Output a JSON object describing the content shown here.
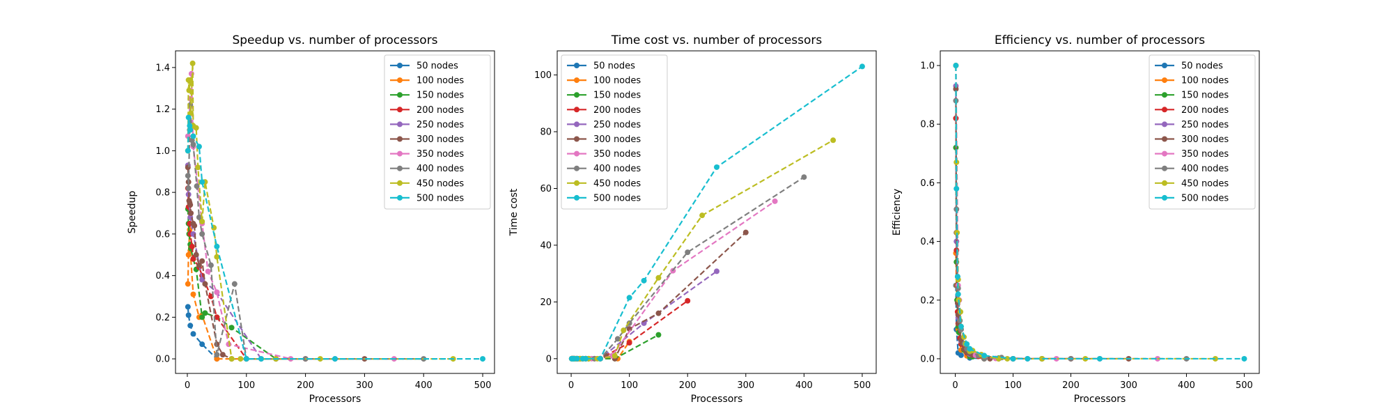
{
  "chart_data": [
    {
      "type": "line",
      "title": "Speedup vs. number of processors",
      "xlabel": "Processors",
      "ylabel": "Speedup",
      "xlim": [
        -20,
        520
      ],
      "ylim": [
        -0.07,
        1.48
      ],
      "xticks": [
        0,
        100,
        200,
        300,
        400,
        500
      ],
      "xtick_labels": [
        "0",
        "100",
        "200",
        "300",
        "400",
        "500"
      ],
      "yticks": [
        0.0,
        0.2,
        0.4,
        0.6,
        0.8,
        1.0,
        1.2,
        1.4
      ],
      "ytick_labels": [
        "0.0",
        "0.2",
        "0.4",
        "0.6",
        "0.8",
        "1.0",
        "1.2",
        "1.4"
      ],
      "legend_position": "top-right",
      "series": [
        {
          "name": "50 nodes",
          "color": "#1f77b4",
          "x": [
            1,
            2,
            5,
            10,
            25,
            50
          ],
          "y": [
            0.25,
            0.21,
            0.16,
            0.12,
            0.07,
            0.0
          ]
        },
        {
          "name": "100 nodes",
          "color": "#ff7f0e",
          "x": [
            1,
            2,
            4,
            5,
            10,
            20,
            25,
            50,
            100
          ],
          "y": [
            0.36,
            0.5,
            0.62,
            0.52,
            0.31,
            0.2,
            0.21,
            0.0,
            0.0
          ]
        },
        {
          "name": "150 nodes",
          "color": "#2ca02c",
          "x": [
            1,
            2,
            3,
            5,
            6,
            10,
            15,
            25,
            30,
            50,
            75,
            150
          ],
          "y": [
            0.72,
            0.65,
            0.6,
            0.55,
            0.53,
            0.48,
            0.43,
            0.2,
            0.22,
            0.2,
            0.15,
            0.0
          ]
        },
        {
          "name": "200 nodes",
          "color": "#d62728",
          "x": [
            1,
            2,
            4,
            5,
            8,
            10,
            20,
            25,
            40,
            50,
            100,
            200
          ],
          "y": [
            0.82,
            0.73,
            0.65,
            0.6,
            0.54,
            0.48,
            0.44,
            0.4,
            0.3,
            0.2,
            0.0,
            0.0
          ]
        },
        {
          "name": "250 nodes",
          "color": "#9467bd",
          "x": [
            1,
            2,
            5,
            10,
            25,
            50,
            125,
            250
          ],
          "y": [
            0.93,
            0.79,
            0.68,
            0.6,
            0.38,
            0.32,
            0.0,
            0.0
          ]
        },
        {
          "name": "300 nodes",
          "color": "#8c564b",
          "x": [
            1,
            2,
            3,
            4,
            5,
            6,
            10,
            12,
            15,
            20,
            25,
            30,
            50,
            60,
            75,
            100,
            150,
            300
          ],
          "y": [
            0.92,
            0.85,
            0.76,
            0.75,
            0.74,
            0.7,
            0.65,
            0.64,
            0.5,
            0.45,
            0.47,
            0.36,
            0.07,
            0.02,
            0.0,
            0.0,
            0.0,
            0.0
          ]
        },
        {
          "name": "350 nodes",
          "color": "#e377c2",
          "x": [
            1,
            5,
            7,
            10,
            25,
            35,
            50,
            70,
            175,
            350
          ],
          "y": [
            1.07,
            1.25,
            1.37,
            1.02,
            0.65,
            0.42,
            0.32,
            0.07,
            0.0,
            0.0
          ]
        },
        {
          "name": "400 nodes",
          "color": "#7f7f7f",
          "x": [
            1,
            2,
            4,
            5,
            8,
            10,
            16,
            20,
            25,
            40,
            50,
            80,
            100,
            200,
            400
          ],
          "y": [
            0.88,
            0.82,
            1.1,
            1.22,
            1.05,
            1.03,
            0.83,
            0.68,
            0.6,
            0.45,
            0.02,
            0.36,
            0.0,
            0.0,
            0.0
          ]
        },
        {
          "name": "450 nodes",
          "color": "#bcbd22",
          "x": [
            1,
            2,
            3,
            5,
            6,
            9,
            10,
            15,
            18,
            25,
            30,
            45,
            50,
            75,
            90,
            150,
            225,
            450
          ],
          "y": [
            1.0,
            1.34,
            1.29,
            1.34,
            1.18,
            1.42,
            1.12,
            1.11,
            0.92,
            0.66,
            0.85,
            0.63,
            0.49,
            0.0,
            0.0,
            0.0,
            0.0,
            0.0
          ]
        },
        {
          "name": "500 nodes",
          "color": "#17becf",
          "x": [
            1,
            2,
            4,
            5,
            10,
            20,
            25,
            50,
            100,
            125,
            250,
            500
          ],
          "y": [
            1.0,
            1.16,
            1.12,
            1.1,
            1.07,
            1.02,
            0.85,
            0.54,
            0.0,
            0.0,
            0.0,
            0.0
          ]
        }
      ]
    },
    {
      "type": "line",
      "title": "Time cost vs. number of processors",
      "xlabel": "Processors",
      "ylabel": "Time cost",
      "xlim": [
        -24,
        524
      ],
      "ylim": [
        -5.2,
        108.5
      ],
      "xticks": [
        0,
        100,
        200,
        300,
        400,
        500
      ],
      "xtick_labels": [
        "0",
        "100",
        "200",
        "300",
        "400",
        "500"
      ],
      "yticks": [
        0,
        20,
        40,
        60,
        80,
        100
      ],
      "ytick_labels": [
        "0",
        "20",
        "40",
        "60",
        "80",
        "100"
      ],
      "legend_position": "top-left",
      "series": [
        {
          "name": "50 nodes",
          "color": "#1f77b4",
          "x": [
            1,
            2,
            5,
            10,
            25,
            50
          ],
          "y": [
            0.0,
            0.0,
            0.0,
            0.0,
            0.0,
            0.0
          ]
        },
        {
          "name": "100 nodes",
          "color": "#ff7f0e",
          "x": [
            1,
            2,
            4,
            5,
            10,
            20,
            25,
            50,
            80,
            100
          ],
          "y": [
            0.0,
            0.0,
            0.0,
            0.0,
            0.0,
            0.0,
            0.0,
            0.0,
            0.0,
            6.0
          ]
        },
        {
          "name": "150 nodes",
          "color": "#2ca02c",
          "x": [
            1,
            2,
            3,
            5,
            6,
            10,
            15,
            25,
            30,
            50,
            75,
            150
          ],
          "y": [
            0.0,
            0.0,
            0.0,
            0.0,
            0.0,
            0.0,
            0.0,
            0.0,
            0.0,
            0.0,
            0.0,
            8.4
          ]
        },
        {
          "name": "200 nodes",
          "color": "#d62728",
          "x": [
            1,
            2,
            4,
            5,
            8,
            10,
            20,
            25,
            40,
            50,
            100,
            200
          ],
          "y": [
            0.0,
            0.0,
            0.0,
            0.0,
            0.0,
            0.0,
            0.0,
            0.0,
            0.0,
            0.0,
            5.6,
            20.4
          ]
        },
        {
          "name": "250 nodes",
          "color": "#9467bd",
          "x": [
            1,
            2,
            5,
            10,
            25,
            50,
            125,
            250
          ],
          "y": [
            0.0,
            0.0,
            0.0,
            0.0,
            0.0,
            0.0,
            12.5,
            30.8
          ]
        },
        {
          "name": "300 nodes",
          "color": "#8c564b",
          "x": [
            1,
            2,
            3,
            4,
            5,
            6,
            10,
            12,
            15,
            20,
            25,
            30,
            50,
            60,
            75,
            100,
            150,
            300
          ],
          "y": [
            0.0,
            0.0,
            0.0,
            0.0,
            0.0,
            0.0,
            0.0,
            0.0,
            0.0,
            0.0,
            0.0,
            0.0,
            0.0,
            1.0,
            0.0,
            10.5,
            16.0,
            44.5
          ]
        },
        {
          "name": "350 nodes",
          "color": "#e377c2",
          "x": [
            1,
            5,
            7,
            10,
            25,
            35,
            50,
            70,
            175,
            350
          ],
          "y": [
            0.0,
            0.0,
            0.0,
            0.0,
            0.0,
            0.0,
            0.0,
            1.0,
            31.0,
            55.5
          ]
        },
        {
          "name": "400 nodes",
          "color": "#7f7f7f",
          "x": [
            1,
            2,
            4,
            5,
            8,
            10,
            16,
            20,
            25,
            40,
            50,
            80,
            100,
            200,
            400
          ],
          "y": [
            0.0,
            0.0,
            0.0,
            0.0,
            0.0,
            0.0,
            0.0,
            0.0,
            0.0,
            0.0,
            0.0,
            7.0,
            12.5,
            37.5,
            64.0
          ]
        },
        {
          "name": "450 nodes",
          "color": "#bcbd22",
          "x": [
            1,
            2,
            3,
            5,
            6,
            9,
            10,
            15,
            18,
            25,
            30,
            45,
            50,
            75,
            90,
            150,
            225,
            450
          ],
          "y": [
            0.0,
            0.0,
            0.0,
            0.0,
            0.0,
            0.0,
            0.0,
            0.0,
            0.0,
            0.0,
            0.0,
            0.0,
            0.0,
            1.0,
            10.0,
            28.5,
            50.5,
            77.0
          ]
        },
        {
          "name": "500 nodes",
          "color": "#17becf",
          "x": [
            1,
            2,
            4,
            5,
            10,
            20,
            25,
            50,
            100,
            125,
            250,
            500
          ],
          "y": [
            0.0,
            0.0,
            0.0,
            0.0,
            0.0,
            0.0,
            0.0,
            0.0,
            21.5,
            27.5,
            67.5,
            103.0
          ]
        }
      ]
    },
    {
      "type": "line",
      "title": "Efficiency vs. number of processors",
      "xlabel": "Processors",
      "ylabel": "Efficiency",
      "xlim": [
        -26,
        526
      ],
      "ylim": [
        -0.05,
        1.05
      ],
      "xticks": [
        0,
        100,
        200,
        300,
        400,
        500
      ],
      "xtick_labels": [
        "0",
        "100",
        "200",
        "300",
        "400",
        "500"
      ],
      "yticks": [
        0.0,
        0.2,
        0.4,
        0.6,
        0.8,
        1.0
      ],
      "ytick_labels": [
        "0.0",
        "0.2",
        "0.4",
        "0.6",
        "0.8",
        "1.0"
      ],
      "legend_position": "top-right",
      "series": [
        {
          "name": "50 nodes",
          "color": "#1f77b4",
          "x": [
            1,
            2,
            5,
            10,
            25,
            50
          ],
          "y": [
            0.25,
            0.1,
            0.02,
            0.012,
            0.003,
            0.0
          ]
        },
        {
          "name": "100 nodes",
          "color": "#ff7f0e",
          "x": [
            1,
            2,
            4,
            5,
            10,
            20,
            25,
            50,
            100
          ],
          "y": [
            0.36,
            0.25,
            0.16,
            0.1,
            0.03,
            0.01,
            0.008,
            0.0,
            0.0
          ]
        },
        {
          "name": "150 nodes",
          "color": "#2ca02c",
          "x": [
            1,
            2,
            3,
            5,
            6,
            10,
            15,
            25,
            30,
            50,
            75,
            150
          ],
          "y": [
            0.72,
            0.33,
            0.2,
            0.11,
            0.09,
            0.05,
            0.03,
            0.008,
            0.007,
            0.004,
            0.002,
            0.0
          ]
        },
        {
          "name": "200 nodes",
          "color": "#d62728",
          "x": [
            1,
            2,
            4,
            5,
            8,
            10,
            20,
            25,
            40,
            50,
            100,
            200
          ],
          "y": [
            0.82,
            0.37,
            0.16,
            0.12,
            0.07,
            0.05,
            0.02,
            0.016,
            0.008,
            0.004,
            0.0,
            0.0
          ]
        },
        {
          "name": "250 nodes",
          "color": "#9467bd",
          "x": [
            1,
            2,
            5,
            10,
            25,
            50,
            125,
            250
          ],
          "y": [
            0.93,
            0.4,
            0.14,
            0.06,
            0.015,
            0.006,
            0.0,
            0.0
          ]
        },
        {
          "name": "300 nodes",
          "color": "#8c564b",
          "x": [
            1,
            2,
            3,
            4,
            5,
            6,
            10,
            12,
            15,
            20,
            25,
            30,
            50,
            60,
            75,
            100,
            150,
            300
          ],
          "y": [
            0.92,
            0.43,
            0.25,
            0.19,
            0.15,
            0.12,
            0.065,
            0.053,
            0.033,
            0.022,
            0.019,
            0.012,
            0.001,
            0.0,
            0.0,
            0.0,
            0.0,
            0.0
          ]
        },
        {
          "name": "350 nodes",
          "color": "#e377c2",
          "x": [
            1,
            5,
            7,
            10,
            25,
            35,
            50,
            70,
            175,
            350
          ],
          "y": [
            1.0,
            0.25,
            0.2,
            0.1,
            0.026,
            0.012,
            0.006,
            0.001,
            0.0,
            0.0
          ]
        },
        {
          "name": "400 nodes",
          "color": "#7f7f7f",
          "x": [
            1,
            2,
            4,
            5,
            8,
            10,
            16,
            20,
            25,
            40,
            50,
            80,
            100,
            200,
            400
          ],
          "y": [
            0.88,
            0.51,
            0.28,
            0.24,
            0.13,
            0.1,
            0.052,
            0.034,
            0.024,
            0.011,
            0.0,
            0.004,
            0.0,
            0.0,
            0.0
          ]
        },
        {
          "name": "450 nodes",
          "color": "#bcbd22",
          "x": [
            1,
            2,
            3,
            5,
            6,
            9,
            10,
            15,
            18,
            25,
            30,
            45,
            50,
            75,
            90,
            150,
            225,
            450
          ],
          "y": [
            1.0,
            0.67,
            0.43,
            0.27,
            0.2,
            0.16,
            0.11,
            0.074,
            0.051,
            0.026,
            0.028,
            0.014,
            0.01,
            0.0,
            0.0,
            0.0,
            0.0,
            0.0
          ]
        },
        {
          "name": "500 nodes",
          "color": "#17becf",
          "x": [
            1,
            2,
            4,
            5,
            10,
            20,
            25,
            50,
            100,
            125,
            250,
            500
          ],
          "y": [
            1.0,
            0.58,
            0.28,
            0.22,
            0.11,
            0.05,
            0.034,
            0.011,
            0.0,
            0.0,
            0.0,
            0.0
          ]
        }
      ]
    }
  ]
}
